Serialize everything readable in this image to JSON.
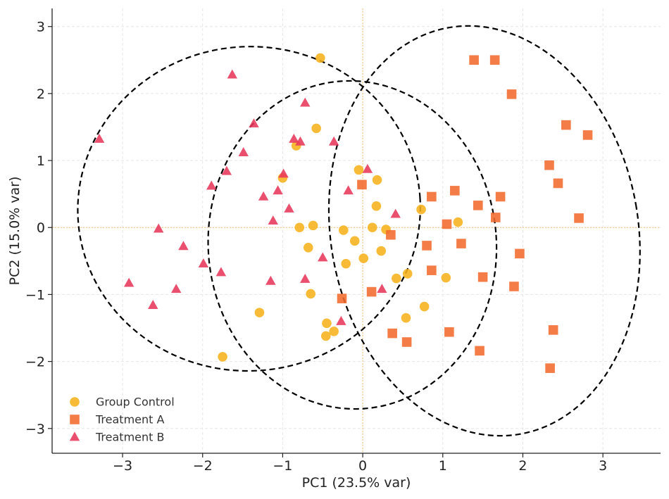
{
  "chart_data": {
    "type": "scatter",
    "title": "",
    "xlabel": "PC1 (23.5% var)",
    "ylabel": "PC2 (15.0% var)",
    "xlim": [
      -3.88,
      3.72
    ],
    "ylim": [
      -3.37,
      3.27
    ],
    "xticks": [
      -3,
      -2,
      -1,
      0,
      1,
      2,
      3
    ],
    "yticks": [
      -3,
      -2,
      -1,
      0,
      1,
      2,
      3
    ],
    "grid": true,
    "legend_position": "bottom-left",
    "reference_lines": {
      "x": 0,
      "y": 0,
      "color": "#f0c27a"
    },
    "series": [
      {
        "name": "Group Control",
        "marker": "circle",
        "color": "#f7b21d",
        "points": [
          [
            -0.53,
            2.53
          ],
          [
            -0.58,
            1.48
          ],
          [
            -0.83,
            1.22
          ],
          [
            -1.0,
            0.74
          ],
          [
            -0.05,
            0.86
          ],
          [
            0.18,
            0.71
          ],
          [
            0.17,
            0.32
          ],
          [
            0.73,
            0.27
          ],
          [
            1.19,
            0.08
          ],
          [
            -0.79,
            0.0
          ],
          [
            -0.62,
            0.03
          ],
          [
            -0.24,
            -0.04
          ],
          [
            0.12,
            0.0
          ],
          [
            0.29,
            -0.03
          ],
          [
            -0.1,
            -0.2
          ],
          [
            -0.68,
            -0.3
          ],
          [
            0.23,
            -0.35
          ],
          [
            0.01,
            -0.46
          ],
          [
            -0.21,
            -0.54
          ],
          [
            0.56,
            -0.69
          ],
          [
            0.42,
            -0.76
          ],
          [
            1.04,
            -0.75
          ],
          [
            -0.65,
            -0.99
          ],
          [
            -1.29,
            -1.27
          ],
          [
            0.77,
            -1.18
          ],
          [
            0.54,
            -1.35
          ],
          [
            -0.45,
            -1.43
          ],
          [
            -0.36,
            -1.55
          ],
          [
            -0.46,
            -1.62
          ],
          [
            -1.75,
            -1.93
          ]
        ]
      },
      {
        "name": "Treatment A",
        "marker": "square",
        "color": "#f26a2e",
        "points": [
          [
            1.39,
            2.5
          ],
          [
            1.65,
            2.5
          ],
          [
            1.86,
            1.99
          ],
          [
            2.54,
            1.53
          ],
          [
            2.81,
            1.38
          ],
          [
            2.33,
            0.93
          ],
          [
            2.44,
            0.66
          ],
          [
            -0.01,
            0.64
          ],
          [
            1.15,
            0.55
          ],
          [
            0.86,
            0.46
          ],
          [
            1.72,
            0.46
          ],
          [
            1.44,
            0.33
          ],
          [
            1.05,
            0.05
          ],
          [
            1.66,
            0.15
          ],
          [
            2.7,
            0.14
          ],
          [
            0.35,
            -0.11
          ],
          [
            1.23,
            -0.24
          ],
          [
            0.8,
            -0.27
          ],
          [
            1.96,
            -0.39
          ],
          [
            0.86,
            -0.64
          ],
          [
            1.5,
            -0.74
          ],
          [
            1.89,
            -0.88
          ],
          [
            0.11,
            -0.96
          ],
          [
            -0.26,
            -1.06
          ],
          [
            2.38,
            -1.53
          ],
          [
            0.37,
            -1.58
          ],
          [
            1.08,
            -1.56
          ],
          [
            0.55,
            -1.71
          ],
          [
            1.46,
            -1.84
          ],
          [
            2.34,
            -2.1
          ]
        ]
      },
      {
        "name": "Treatment B",
        "marker": "triangle",
        "color": "#e8375a",
        "points": [
          [
            -1.63,
            2.28
          ],
          [
            -0.72,
            1.86
          ],
          [
            -1.36,
            1.55
          ],
          [
            -3.29,
            1.32
          ],
          [
            -0.86,
            1.32
          ],
          [
            -0.78,
            1.28
          ],
          [
            -0.36,
            1.28
          ],
          [
            -1.49,
            1.12
          ],
          [
            -1.7,
            0.84
          ],
          [
            -0.99,
            0.8
          ],
          [
            0.06,
            0.87
          ],
          [
            -1.89,
            0.62
          ],
          [
            -1.06,
            0.55
          ],
          [
            -0.18,
            0.55
          ],
          [
            -1.24,
            0.46
          ],
          [
            -0.92,
            0.28
          ],
          [
            0.41,
            0.2
          ],
          [
            -1.12,
            0.1
          ],
          [
            -2.55,
            -0.02
          ],
          [
            -2.24,
            -0.28
          ],
          [
            -0.5,
            -0.45
          ],
          [
            -1.99,
            -0.54
          ],
          [
            -1.77,
            -0.67
          ],
          [
            -0.72,
            -0.77
          ],
          [
            -1.15,
            -0.8
          ],
          [
            -2.92,
            -0.83
          ],
          [
            0.24,
            -0.92
          ],
          [
            -2.33,
            -0.92
          ],
          [
            -2.62,
            -1.16
          ],
          [
            -0.27,
            -1.4
          ]
        ]
      }
    ],
    "ellipses": [
      {
        "cx": -1.42,
        "cy": 0.28,
        "rx": 2.14,
        "ry": 2.42,
        "angle_deg": -4,
        "style": "dashed",
        "color": "#000000"
      },
      {
        "cx": -0.13,
        "cy": -0.26,
        "rx": 1.8,
        "ry": 2.45,
        "angle_deg": -4,
        "style": "dashed",
        "color": "#000000"
      },
      {
        "cx": 1.52,
        "cy": -0.05,
        "rx": 1.92,
        "ry": 3.08,
        "angle_deg": -10,
        "style": "dashed",
        "color": "#000000"
      }
    ]
  }
}
